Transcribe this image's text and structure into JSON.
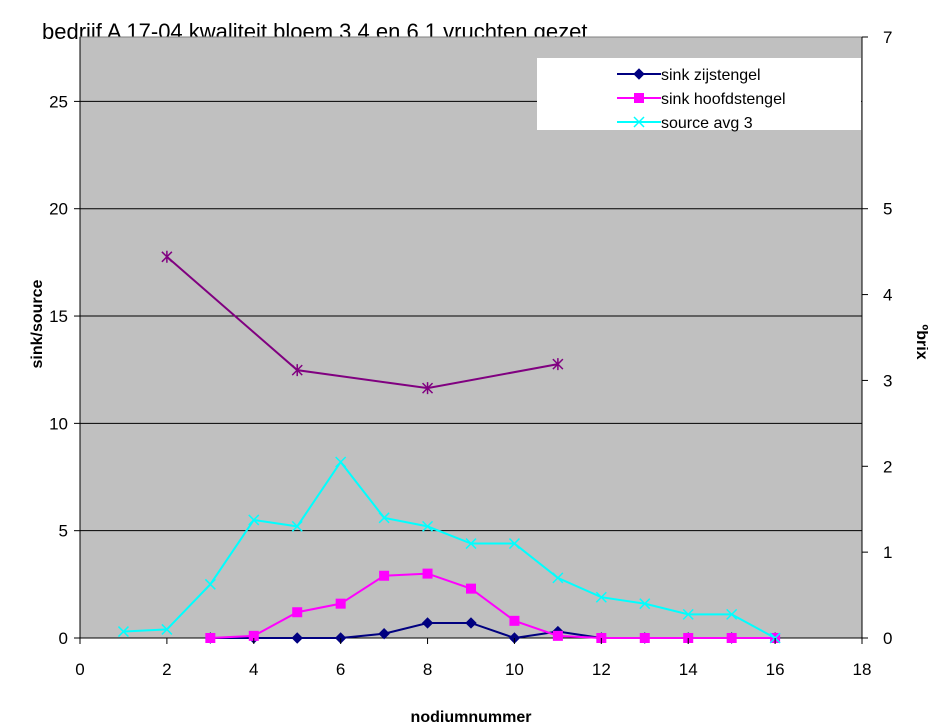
{
  "chart_data": {
    "type": "line",
    "title": "bedrijf A 17-04 kwaliteit bloem 3.4 en  6.1 vruchten gezet",
    "xlabel": "nodiumnummer",
    "ylabel": "sink/source",
    "y2label": "ºbrix",
    "xlim": [
      0,
      18
    ],
    "ylim": [
      0,
      28
    ],
    "y2lim": [
      0,
      7
    ],
    "xticks": [
      "0",
      "2",
      "4",
      "6",
      "8",
      "10",
      "12",
      "14",
      "16",
      "18"
    ],
    "yticks": [
      "0",
      "5",
      "10",
      "15",
      "20",
      "25"
    ],
    "y2ticks": [
      "0",
      "1",
      "2",
      "3",
      "4",
      "5",
      "7"
    ],
    "grid": "horizontal",
    "plot_background": "#c0c0c0",
    "legend_position": "top-right",
    "series": [
      {
        "name": "sink zijstengel",
        "color": "#000080",
        "marker": "diamond",
        "axis": "left",
        "x": [
          3,
          4,
          5,
          6,
          7,
          8,
          9,
          10,
          11,
          12,
          13,
          14,
          15,
          16
        ],
        "values": [
          0,
          0,
          0,
          0,
          0.2,
          0.7,
          0.7,
          0,
          0.3,
          0,
          0,
          0,
          0,
          0
        ]
      },
      {
        "name": "sink hoofdstengel",
        "color": "#ff00ff",
        "marker": "square",
        "axis": "left",
        "x": [
          3,
          4,
          5,
          6,
          7,
          8,
          9,
          10,
          11,
          12,
          13,
          14,
          15,
          16
        ],
        "values": [
          0,
          0.1,
          1.2,
          1.6,
          2.9,
          3.0,
          2.3,
          0.8,
          0.1,
          0,
          0,
          0,
          0,
          0
        ]
      },
      {
        "name": "source avg 3",
        "color": "#00ffff",
        "marker": "x",
        "axis": "left",
        "x": [
          1,
          2,
          3,
          4,
          5,
          6,
          7,
          8,
          9,
          10,
          11,
          12,
          13,
          14,
          15,
          16
        ],
        "values": [
          0.3,
          0.4,
          2.5,
          5.5,
          5.2,
          8.2,
          5.6,
          5.2,
          4.4,
          4.4,
          2.8,
          1.9,
          1.6,
          1.1,
          1.1,
          0
        ]
      },
      {
        "color": "#800080",
        "marker": "asterisk",
        "axis": "right",
        "x": [
          2,
          5,
          8,
          11
        ],
        "values": [
          4.44,
          3.12,
          2.91,
          3.19
        ]
      }
    ]
  }
}
